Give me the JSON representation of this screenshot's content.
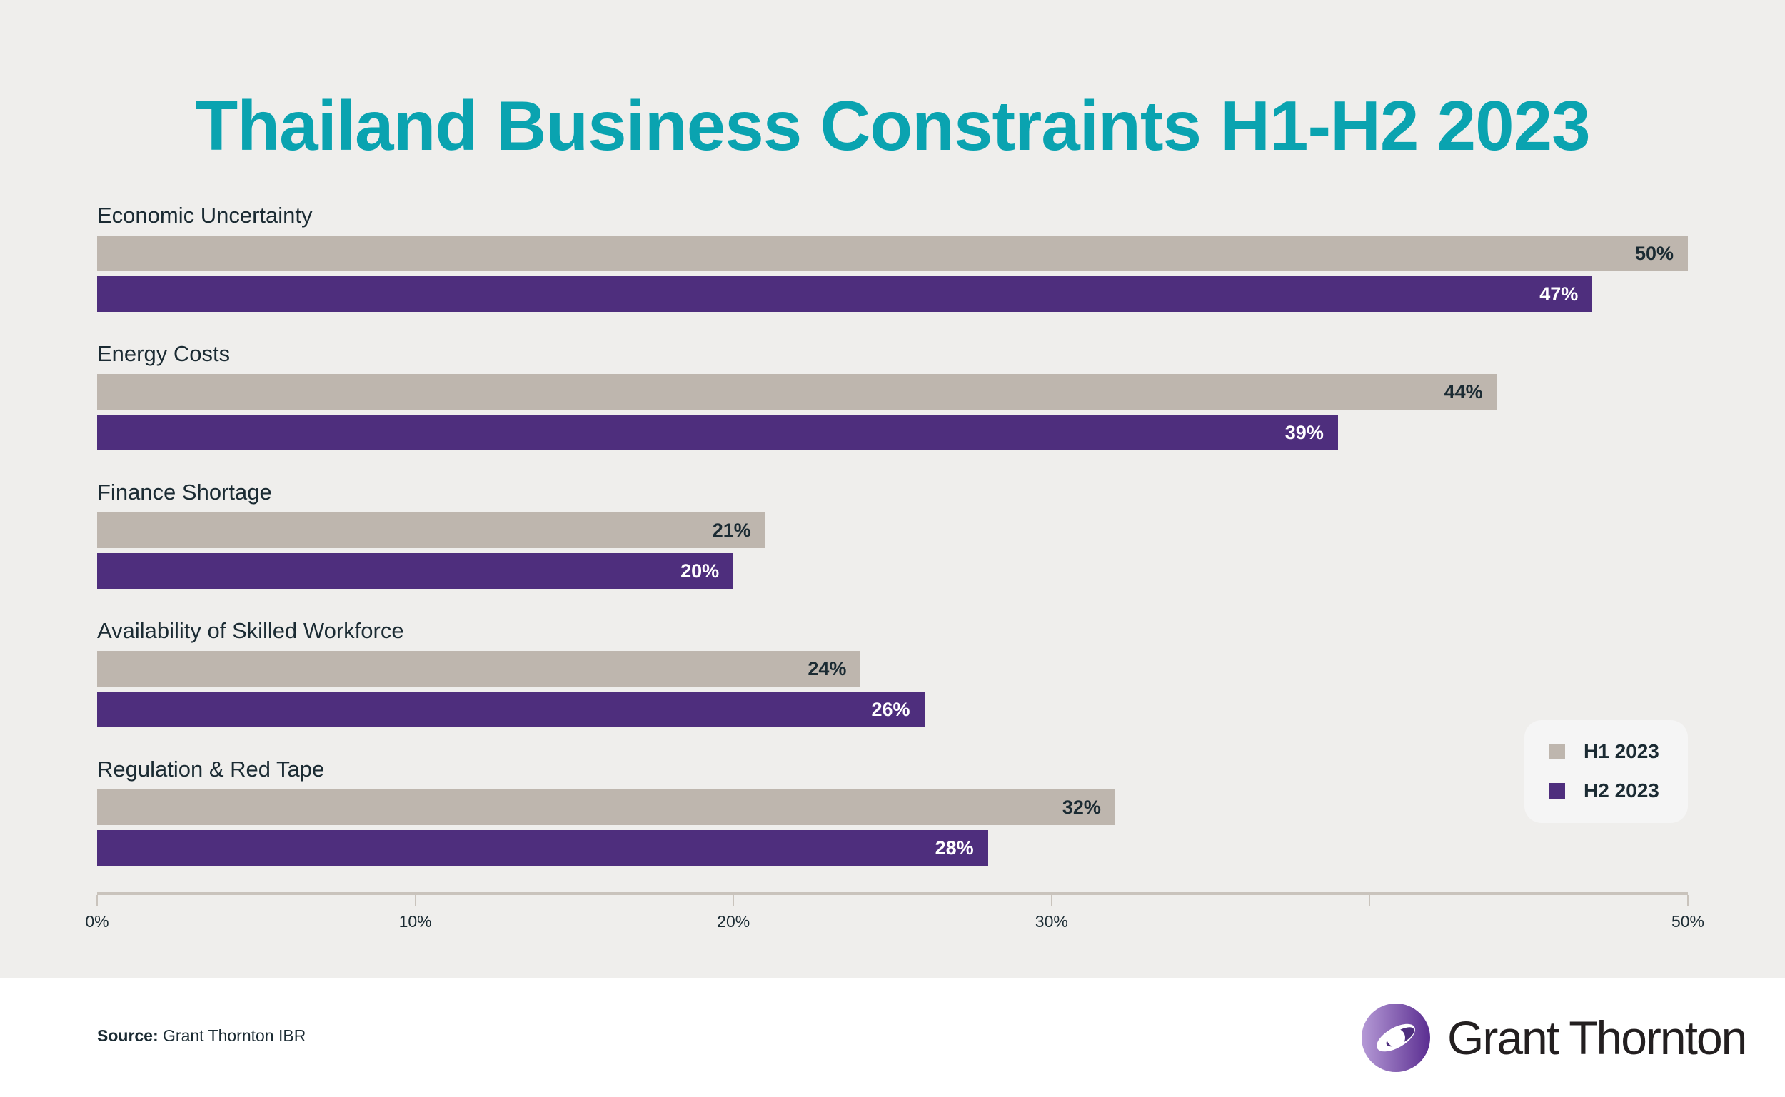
{
  "title": "Thailand Business Constraints H1-H2 2023",
  "chart_data": {
    "type": "bar",
    "orientation": "horizontal",
    "title": "Thailand Business Constraints H1-H2 2023",
    "categories": [
      "Economic Uncertainty",
      "Energy Costs",
      "Finance Shortage",
      "Availability of Skilled Workforce",
      "Regulation & Red Tape"
    ],
    "series": [
      {
        "name": "H1 2023",
        "color": "#beb6ae",
        "values": [
          50,
          44,
          21,
          24,
          32
        ],
        "labels": [
          "50%",
          "44%",
          "21%",
          "24%",
          "32%"
        ]
      },
      {
        "name": "H2 2023",
        "color": "#4e2e7d",
        "values": [
          47,
          39,
          20,
          26,
          28
        ],
        "labels": [
          "47%",
          "39%",
          "20%",
          "26%",
          "28%"
        ]
      }
    ],
    "xlim": [
      0,
      50
    ],
    "ticks": [
      {
        "v": 0,
        "label": "0%"
      },
      {
        "v": 10,
        "label": "10%"
      },
      {
        "v": 20,
        "label": "20%"
      },
      {
        "v": 30,
        "label": "30%"
      },
      {
        "v": 40,
        "label": ""
      },
      {
        "v": 50,
        "label": "50%"
      }
    ],
    "legend": "bottom-right",
    "grid": false
  },
  "source": {
    "label": "Source:",
    "text": " Grant Thornton IBR"
  },
  "logo": {
    "text": "Grant Thornton"
  }
}
